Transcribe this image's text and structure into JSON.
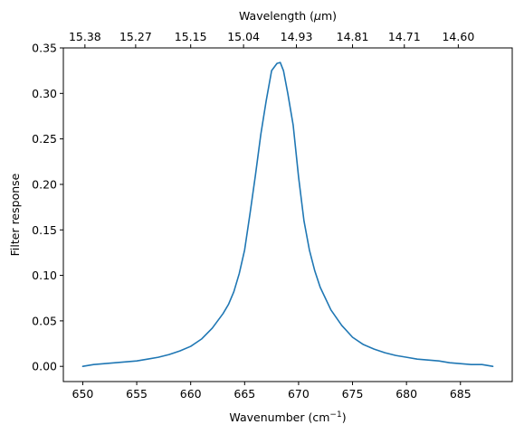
{
  "chart_data": {
    "type": "line",
    "xlabel": "Wavenumber (cm",
    "xlabel_sup": "−1",
    "xlabel_close": ")",
    "ylabel": "Filter response",
    "top_xlabel_prefix": "Wavelength (",
    "top_xlabel_mu": "μ",
    "top_xlabel_suffix": "m)",
    "xlim": [
      648.2,
      689.8
    ],
    "ylim": [
      -0.0167,
      0.35
    ],
    "x_ticks": [
      650,
      655,
      660,
      665,
      670,
      675,
      680,
      685
    ],
    "y_ticks": [
      0.0,
      0.05,
      0.1,
      0.15,
      0.2,
      0.25,
      0.3,
      0.35
    ],
    "y_tick_labels": [
      "0.00",
      "0.05",
      "0.10",
      "0.15",
      "0.20",
      "0.25",
      "0.30",
      "0.35"
    ],
    "top_ticks": [
      {
        "at": 650.2,
        "label": "15.38"
      },
      {
        "at": 654.9,
        "label": "15.27"
      },
      {
        "at": 660.0,
        "label": "15.15"
      },
      {
        "at": 664.9,
        "label": "15.04"
      },
      {
        "at": 669.8,
        "label": "14.93"
      },
      {
        "at": 675.0,
        "label": "14.81"
      },
      {
        "at": 679.8,
        "label": "14.71"
      },
      {
        "at": 684.8,
        "label": "14.60"
      }
    ],
    "grid": false,
    "series": [
      {
        "color": "#1f77b4",
        "x": [
          650,
          651,
          652,
          653,
          654,
          655,
          656,
          657,
          658,
          659,
          660,
          661,
          662,
          663,
          663.5,
          664,
          664.5,
          665,
          665.5,
          666,
          666.5,
          667,
          667.5,
          668,
          668.3,
          668.6,
          669,
          669.5,
          670,
          670.5,
          671,
          671.5,
          672,
          673,
          674,
          675,
          676,
          677,
          678,
          679,
          680,
          681,
          682,
          683,
          684,
          685,
          686,
          687,
          688
        ],
        "y": [
          0.0,
          0.002,
          0.003,
          0.004,
          0.005,
          0.006,
          0.008,
          0.01,
          0.013,
          0.017,
          0.022,
          0.03,
          0.042,
          0.058,
          0.068,
          0.082,
          0.102,
          0.128,
          0.168,
          0.21,
          0.255,
          0.292,
          0.325,
          0.333,
          0.334,
          0.325,
          0.3,
          0.265,
          0.208,
          0.16,
          0.128,
          0.105,
          0.087,
          0.062,
          0.045,
          0.032,
          0.024,
          0.019,
          0.015,
          0.012,
          0.01,
          0.008,
          0.007,
          0.006,
          0.004,
          0.003,
          0.002,
          0.002,
          0.0
        ]
      }
    ]
  }
}
